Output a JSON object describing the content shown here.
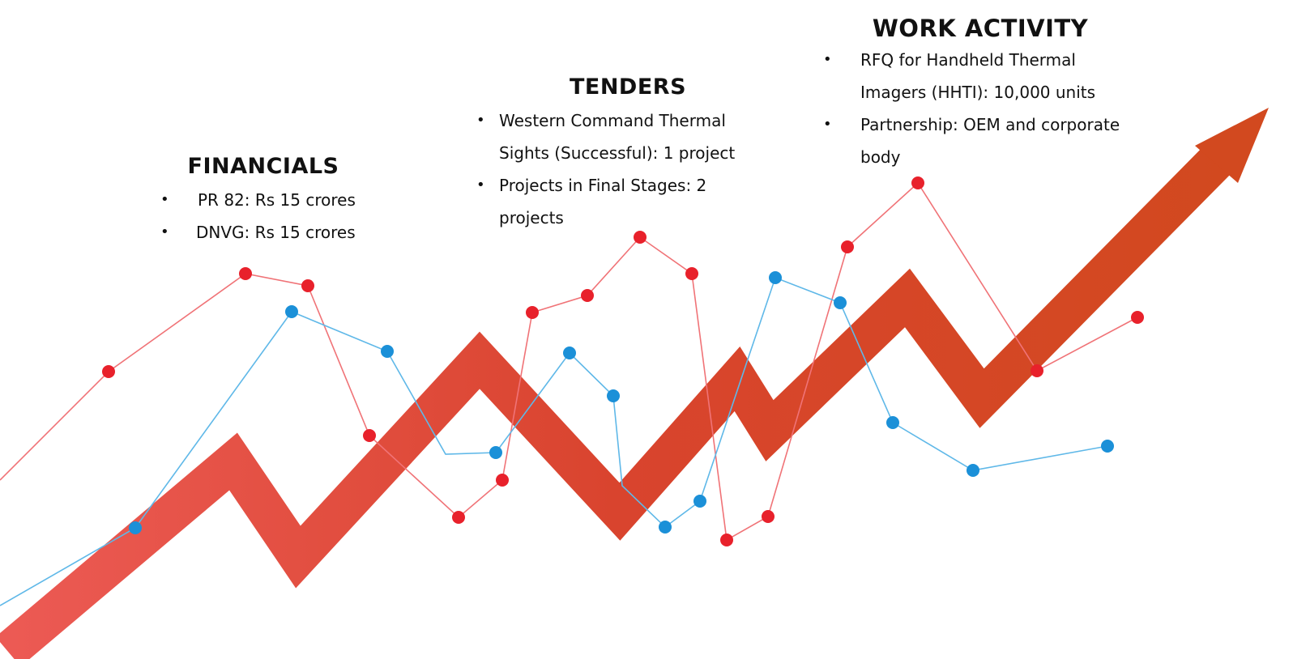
{
  "financials": {
    "title": "FINANCIALS",
    "items": [
      "PR 82: Rs 15 crores",
      "DNVG: Rs 15 crores"
    ]
  },
  "tenders": {
    "title": "TENDERS",
    "items": [
      "Western Command Thermal Sights (Successful): 1 project",
      "Projects in Final Stages: 2 projects"
    ]
  },
  "work_activity": {
    "title": "WORK ACTIVITY",
    "items": [
      "RFQ for Handheld Thermal Imagers (HHTI): 10,000 units",
      "Partnership: OEM and corporate body"
    ]
  },
  "colors": {
    "arrow": "#d9442e",
    "red_line": "#e8212b",
    "blue_line": "#1b90d8"
  }
}
